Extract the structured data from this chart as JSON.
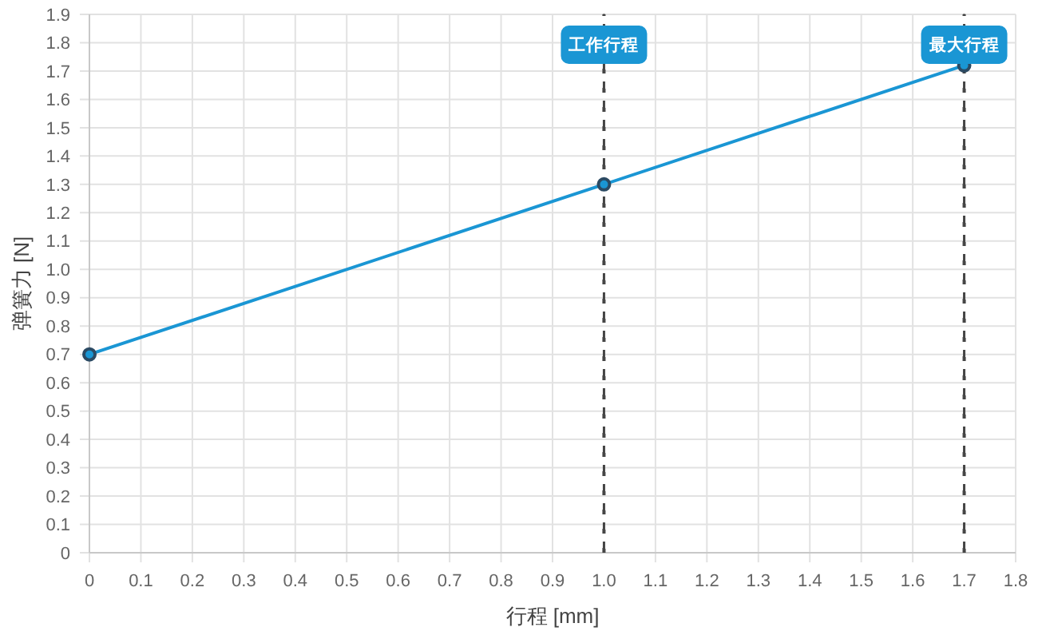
{
  "chart_data": {
    "type": "line",
    "xlabel": "行程 [mm]",
    "ylabel": "弹簧力 [N]",
    "x": [
      0,
      1.0,
      1.7
    ],
    "series": [
      {
        "color": "#1a96d4",
        "values": [
          0.7,
          1.3,
          1.72
        ]
      }
    ],
    "xlim": [
      0,
      1.8
    ],
    "xticks": [
      0,
      0.1,
      0.2,
      0.3,
      0.4,
      0.5,
      0.6,
      0.7,
      0.8,
      0.9,
      {
        "value": 1,
        "label": "1.0"
      },
      1.1,
      1.2,
      1.3,
      1.4,
      1.5,
      1.6,
      1.7,
      1.8
    ],
    "ylim": [
      0,
      1.9
    ],
    "yticks": [
      0,
      0.1,
      0.2,
      0.3,
      0.4,
      0.5,
      0.6,
      0.7,
      0.8,
      0.9,
      {
        "value": 1,
        "label": "1.0"
      },
      1.1,
      1.2,
      1.3,
      1.4,
      1.5,
      1.6,
      1.7,
      1.8,
      1.9
    ],
    "grid": true,
    "marker": "circle",
    "line_style": "solid",
    "ref_lines": [
      {
        "axis": "x",
        "value": 1.0,
        "label": "工作行程",
        "color": "#444444",
        "line_style": "dashed"
      },
      {
        "axis": "x",
        "value": 1.7,
        "label": "最大行程",
        "color": "#444444",
        "line_style": "dashed"
      }
    ]
  }
}
